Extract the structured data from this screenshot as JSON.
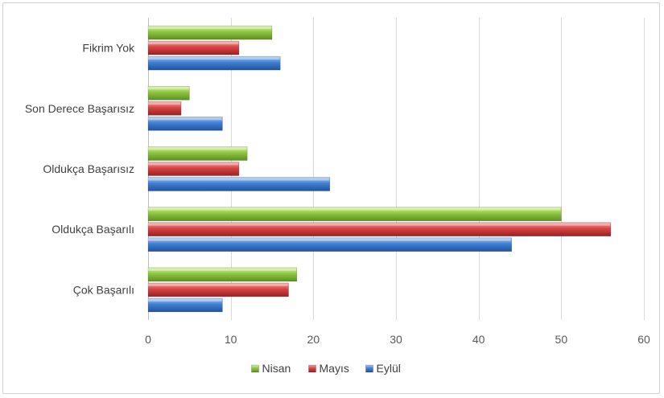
{
  "chart_data": {
    "type": "bar",
    "orientation": "horizontal",
    "title": "",
    "xlabel": "",
    "ylabel": "",
    "categories": [
      "Çok Başarılı",
      "Oldukça Başarılı",
      "Oldukça Başarısız",
      "Son Derece Başarısız",
      "Fikrim Yok"
    ],
    "series": [
      {
        "name": "Nisan",
        "color": "#8cc63f",
        "values": [
          18,
          50,
          12,
          5,
          15
        ]
      },
      {
        "name": "Mayıs",
        "color": "#d84343",
        "values": [
          17,
          56,
          11,
          4,
          11
        ]
      },
      {
        "name": "Eylül",
        "color": "#3f7fd4",
        "values": [
          9,
          44,
          22,
          9,
          16
        ]
      }
    ],
    "xlim": [
      0,
      60
    ],
    "xticks": [
      "0",
      "10",
      "20",
      "30",
      "40",
      "50",
      "60"
    ],
    "grid": true,
    "legend_position": "bottom"
  }
}
